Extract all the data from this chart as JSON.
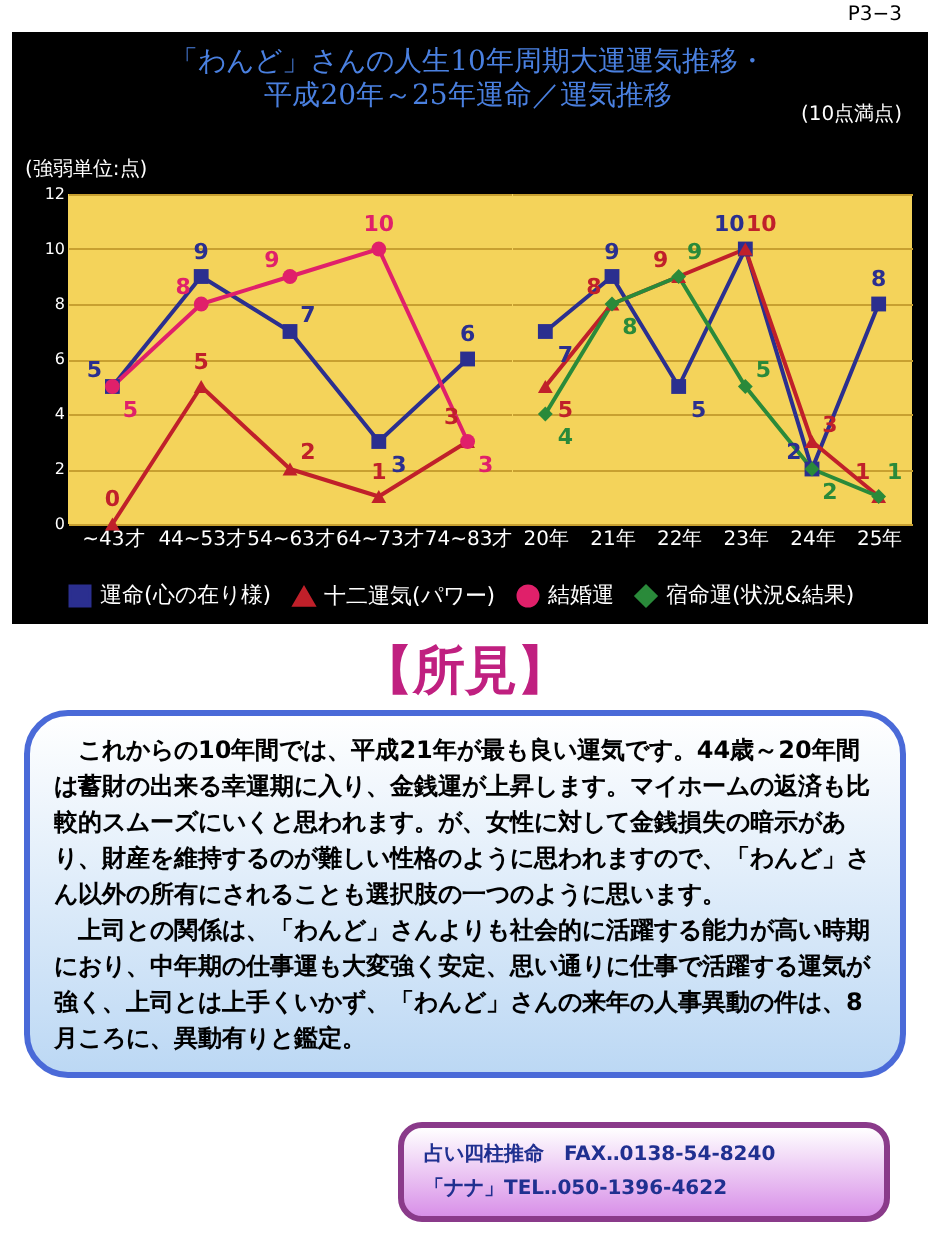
{
  "chart_data": [
    {
      "type": "line",
      "title": "「わんど」さんの人生10年周期大運運気推移・",
      "subtitle": "平成20年～25年運命／運気推移",
      "ylabel": "(強弱単位:点)",
      "categories": [
        "~43才",
        "44~53才",
        "54~63才",
        "64~73才",
        "74~83才"
      ],
      "series": [
        {
          "name": "運命(心の在り様)",
          "color": "#2b2f8f",
          "marker": "square",
          "values": [
            5,
            9,
            7,
            3,
            6
          ]
        },
        {
          "name": "十二運気(パワー)",
          "color": "#c0202a",
          "marker": "triangle",
          "values": [
            0,
            5,
            2,
            1,
            3
          ]
        },
        {
          "name": "結婚運",
          "color": "#e0206a",
          "marker": "circle",
          "values": [
            5,
            8,
            9,
            10,
            3
          ]
        }
      ],
      "ylim": [
        0,
        12
      ],
      "yticks": [
        0,
        2,
        4,
        6,
        8,
        10,
        12
      ],
      "grid": "y",
      "legend": "bottom",
      "data_labels": true,
      "annotations": [
        "P3−3",
        "(10点満点)",
        "【所見】",
        "これからの10年間では、平成21年が最も良い運気です。44歳～20年間は蓄財の出来る幸運期に入り、金銭運が上昇します。マイホームの返済も比較的スムーズにいくと思われます。が、女性に対して金銭損失の暗示があり、財産を維持するのが難しい性格のように思われますので、「わんど」さん以外の所有にされることも選択肢の一つのように思います。",
        "上司との関係は、「わんど」さんよりも社会的に活躍する能力が高い時期におり、中年期の仕事運も大変強く安定、思い通りに仕事で活躍する運気が強く、上司とは上手くいかず、「わんど」さんの来年の人事異動の件は、8月ころに、異動有りと鑑定。",
        "占い四柱推命　FAX‥0138-54-8240",
        "「ナナ」TEL‥050-1396-4622"
      ]
    },
    {
      "type": "line",
      "categories": [
        "20年",
        "21年",
        "22年",
        "23年",
        "24年",
        "25年"
      ],
      "series": [
        {
          "name": "運命(心の在り様)",
          "color": "#2b2f8f",
          "marker": "square",
          "values": [
            7,
            9,
            5,
            10,
            2,
            8
          ]
        },
        {
          "name": "十二運気(パワー)",
          "color": "#c0202a",
          "marker": "triangle",
          "values": [
            5,
            8,
            9,
            10,
            3,
            1
          ]
        },
        {
          "name": "宿命運(状況&結果)",
          "color": "#2a8a3a",
          "marker": "diamond",
          "values": [
            4,
            8,
            9,
            5,
            2,
            1
          ]
        }
      ],
      "ylim": [
        0,
        12
      ],
      "yticks": [
        0,
        2,
        4,
        6,
        8,
        10,
        12
      ],
      "tick_labels": "x",
      "grid": "y",
      "legend": "bottom",
      "data_labels": true
    }
  ]
}
